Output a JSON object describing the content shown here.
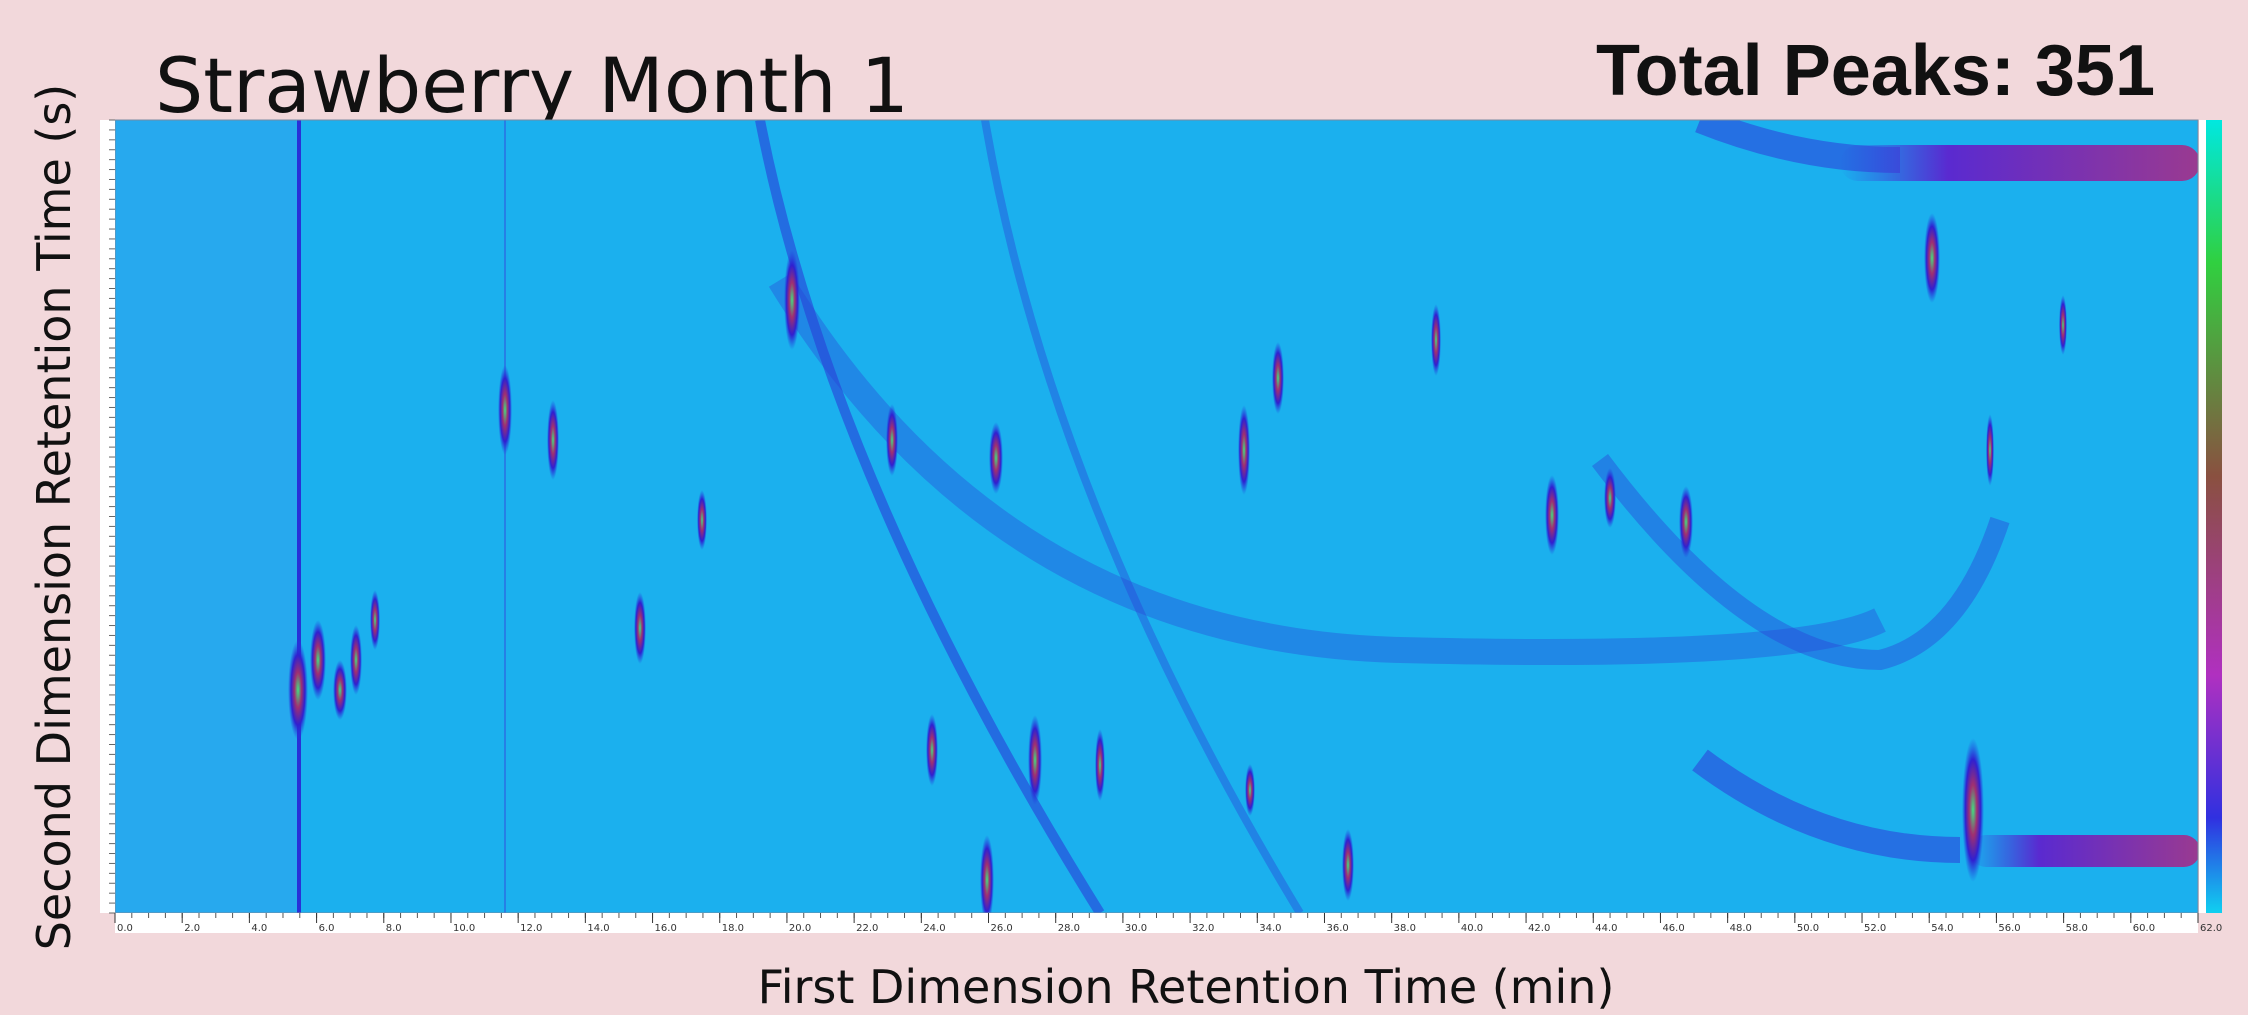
{
  "chart_data": {
    "type": "heatmap",
    "title": "Strawberry Month 1",
    "annotation": "Total Peaks: 351",
    "x_label": "First Dimension Retention Time (min)",
    "y_label": "Second Dimension Retention Time (s)",
    "xlim": [
      0,
      62
    ],
    "xticks": [
      {
        "value": 0,
        "label": "0.0"
      },
      {
        "value": 2,
        "label": "2.0"
      },
      {
        "value": 4,
        "label": "4.0"
      },
      {
        "value": 6,
        "label": "6.0"
      },
      {
        "value": 8,
        "label": "8.0"
      },
      {
        "value": 10,
        "label": "10.0"
      },
      {
        "value": 12,
        "label": "12.0"
      },
      {
        "value": 14,
        "label": "14.0"
      },
      {
        "value": 16,
        "label": "16.0"
      },
      {
        "value": 18,
        "label": "18.0"
      },
      {
        "value": 20,
        "label": "20.0"
      },
      {
        "value": 22,
        "label": "22.0"
      },
      {
        "value": 24,
        "label": "24.0"
      },
      {
        "value": 26,
        "label": "26.0"
      },
      {
        "value": 28,
        "label": "28.0"
      },
      {
        "value": 30,
        "label": "30.0"
      },
      {
        "value": 32,
        "label": "32.0"
      },
      {
        "value": 34,
        "label": "34.0"
      },
      {
        "value": 36,
        "label": "36.0"
      },
      {
        "value": 38,
        "label": "38.0"
      },
      {
        "value": 40,
        "label": "40.0"
      },
      {
        "value": 42,
        "label": "42.0"
      },
      {
        "value": 44,
        "label": "44.0"
      },
      {
        "value": 46,
        "label": "46.0"
      },
      {
        "value": 48,
        "label": "48.0"
      },
      {
        "value": 50,
        "label": "50.0"
      },
      {
        "value": 52,
        "label": "52.0"
      },
      {
        "value": 54,
        "label": "54.0"
      },
      {
        "value": 56,
        "label": "56.0"
      },
      {
        "value": 58,
        "label": "58.0"
      },
      {
        "value": 60,
        "label": "60.0"
      },
      {
        "value": 62,
        "label": "62.0"
      }
    ]
  }
}
